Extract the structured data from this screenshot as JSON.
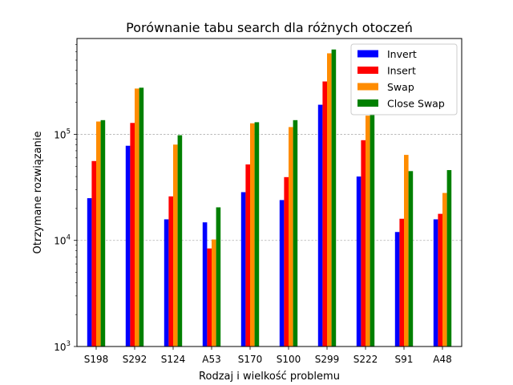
{
  "chart_data": {
    "type": "bar",
    "title": "Porównanie tabu search dla różnych otoczeń",
    "xlabel": "Rodzaj i wielkość problemu",
    "ylabel": "Otrzymane rozwiązanie",
    "yscale": "log",
    "ylim": [
      1000,
      800000
    ],
    "yticks": [
      {
        "value": 1000,
        "base": "10",
        "exp": "3"
      },
      {
        "value": 10000,
        "base": "10",
        "exp": "4"
      },
      {
        "value": 100000,
        "base": "10",
        "exp": "5"
      }
    ],
    "grid": "y-major-dashed",
    "legend_position": "top-right",
    "categories": [
      "S198",
      "S292",
      "S124",
      "A53",
      "S170",
      "S100",
      "S299",
      "S222",
      "S91",
      "A48"
    ],
    "series": [
      {
        "name": "Invert",
        "color": "#0000ff",
        "values": [
          25000,
          78000,
          15800,
          14800,
          28500,
          24000,
          190000,
          40000,
          12000,
          15800
        ]
      },
      {
        "name": "Insert",
        "color": "#ff0000",
        "values": [
          56000,
          128000,
          26000,
          8400,
          52000,
          39500,
          315000,
          88000,
          16000,
          17800
        ]
      },
      {
        "name": "Swap",
        "color": "#ff8c00",
        "values": [
          132000,
          270000,
          80000,
          10200,
          127000,
          117000,
          580000,
          150000,
          64000,
          28000
        ]
      },
      {
        "name": "Close Swap",
        "color": "#008000",
        "values": [
          136000,
          275000,
          98000,
          20500,
          130000,
          136000,
          630000,
          155000,
          45000,
          46000
        ]
      }
    ]
  }
}
